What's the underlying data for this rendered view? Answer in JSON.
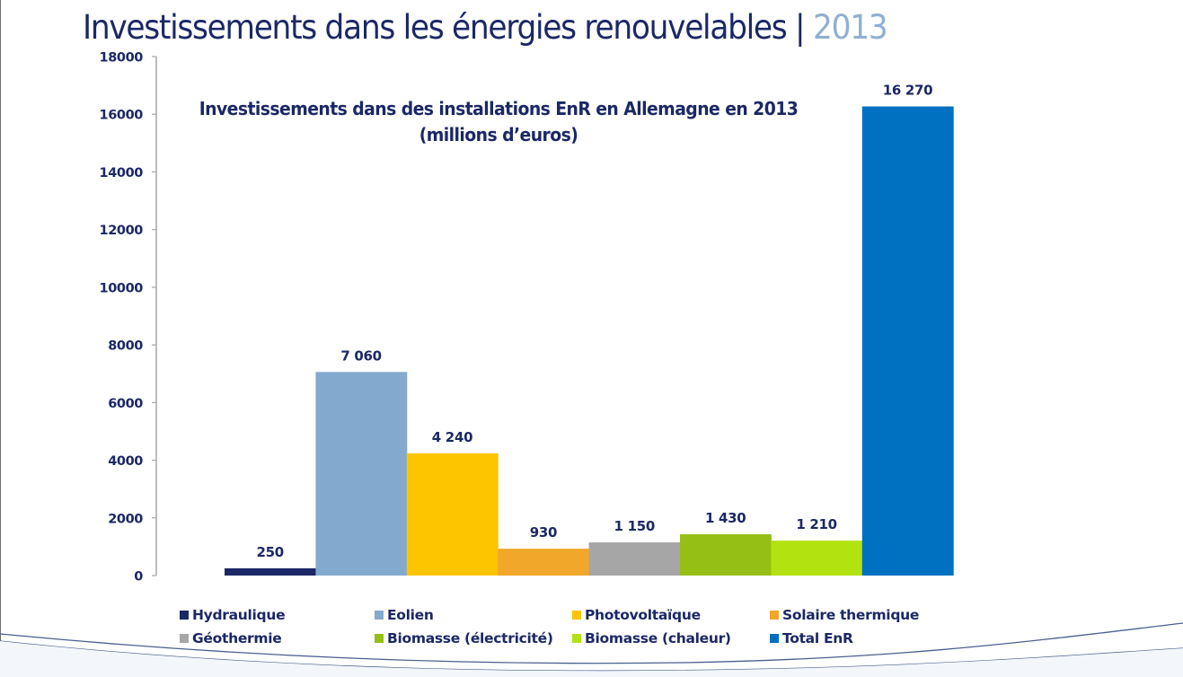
{
  "header": {
    "title": "Investissements dans les énergies renouvelables",
    "separator": "|",
    "year": "2013"
  },
  "colors": {
    "title": "#1b2866",
    "year": "#8fb0d3",
    "axis": "#a6a6a6"
  },
  "chart_data": {
    "type": "bar",
    "title": "Investissements dans des installations EnR en Allemagne en 2013",
    "subtitle": "(millions d’euros)",
    "xlabel": "",
    "ylabel": "",
    "ylim": [
      0,
      18000
    ],
    "yticks": [
      0,
      2000,
      4000,
      6000,
      8000,
      10000,
      12000,
      14000,
      16000,
      18000
    ],
    "ytick_labels": [
      "0",
      "2000",
      "4000",
      "6000",
      "8000",
      "10000",
      "12000",
      "14000",
      "16000",
      "18000"
    ],
    "grid": false,
    "legend_position": "bottom",
    "categories": [
      "Hydraulique",
      "Eolien",
      "Photovoltaïque",
      "Solaire thermique",
      "Géothermie",
      "Biomasse (électricité)",
      "Biomasse (chaleur)",
      "Total EnR"
    ],
    "values": [
      250,
      7060,
      4240,
      930,
      1150,
      1430,
      1210,
      16270
    ],
    "data_labels": [
      "250",
      "7 060",
      "4 240",
      "930",
      "1 150",
      "1 430",
      "1 210",
      "16 270"
    ],
    "colors": [
      "#1b2866",
      "#84a9cf",
      "#fdc400",
      "#f1a72a",
      "#a6a6a6",
      "#95bf15",
      "#b3e211",
      "#0070c0"
    ]
  }
}
